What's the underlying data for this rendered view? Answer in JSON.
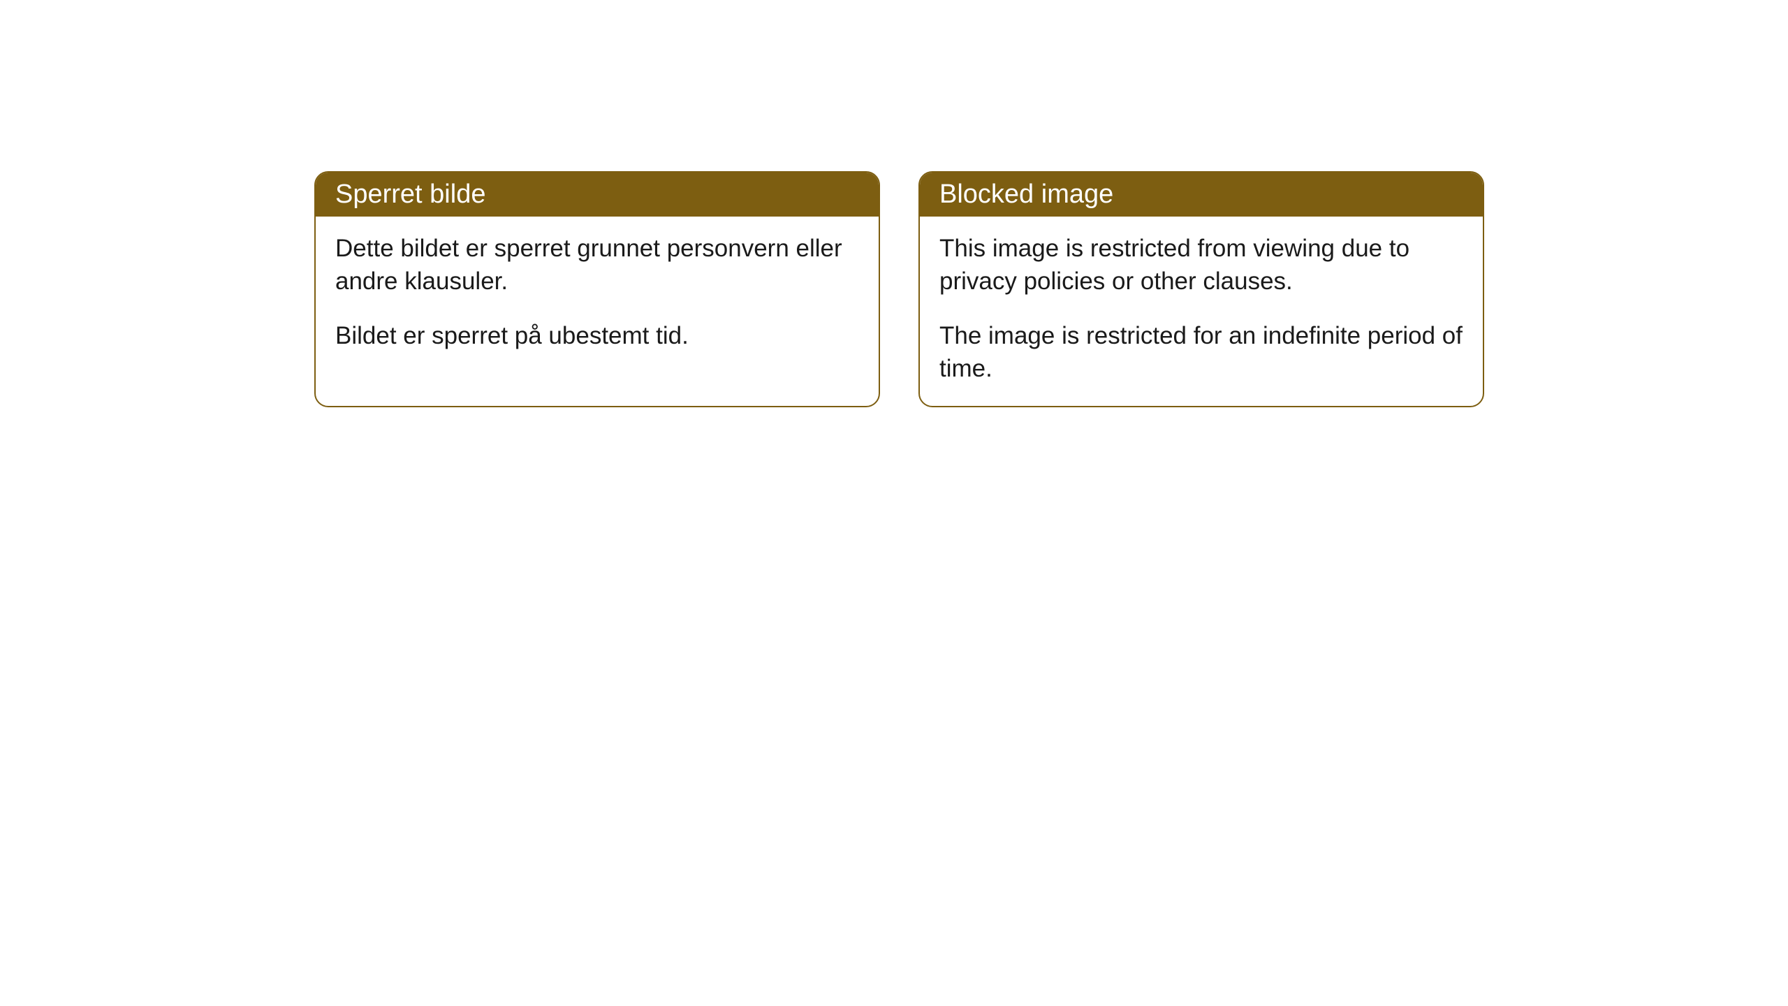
{
  "cards": [
    {
      "title": "Sperret bilde",
      "paragraph1": "Dette bildet er sperret grunnet personvern eller andre klausuler.",
      "paragraph2": "Bildet er sperret på ubestemt tid."
    },
    {
      "title": "Blocked image",
      "paragraph1": "This image is restricted from viewing due to privacy policies or other clauses.",
      "paragraph2": "The image is restricted for an indefinite period of time."
    }
  ],
  "styling": {
    "header_background": "#7d5e11",
    "header_text_color": "#ffffff",
    "body_text_color": "#1a1a1a",
    "card_background": "#ffffff",
    "border_color": "#7d5e11",
    "border_radius": 20,
    "title_fontsize": 38,
    "body_fontsize": 35
  }
}
